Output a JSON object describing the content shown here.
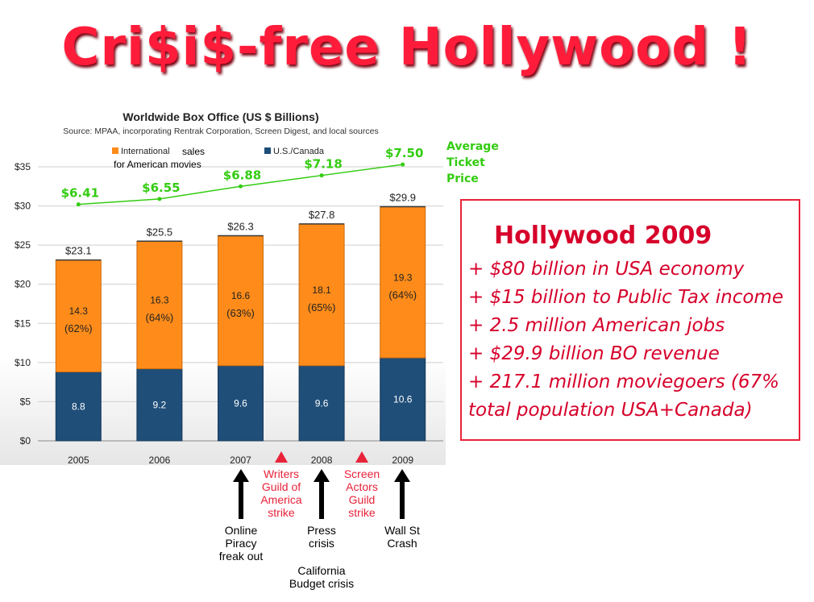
{
  "page_title": "Cri$i$-free Hollywood !",
  "chart_data": {
    "type": "bar",
    "stacked": true,
    "title": "Worldwide Box Office (US $ Billions)",
    "subtitle": "Source: MPAA, incorporating Rentrak Corporation, Screen Digest, and local sources",
    "categories": [
      "2005",
      "2006",
      "2007",
      "2008",
      "2009"
    ],
    "series": [
      {
        "name": "U.S./Canada",
        "color": "#1f4e79",
        "values": [
          8.8,
          9.2,
          9.6,
          9.6,
          10.6
        ]
      },
      {
        "name": "International sales for American movies",
        "color": "#ff8c1a",
        "values": [
          14.3,
          16.3,
          16.6,
          18.1,
          19.3
        ]
      }
    ],
    "international_pct": [
      "(62%)",
      "(64%)",
      "(63%)",
      "(65%)",
      "(64%)"
    ],
    "totals": [
      "$23.1",
      "$25.5",
      "$26.3",
      "$27.8",
      "$29.9"
    ],
    "y_ticks": [
      "$0",
      "$5",
      "$10",
      "$15",
      "$20",
      "$25",
      "$30",
      "$35"
    ],
    "ylim": [
      0,
      35
    ],
    "legend": [
      {
        "label": "International",
        "label_suffix": "sales",
        "label_line2": "for American movies",
        "color": "#ff8c1a"
      },
      {
        "label": "U.S./Canada",
        "color": "#1f4e79"
      }
    ],
    "ticket_price": {
      "label_lines": [
        "Average",
        "Ticket",
        "Price"
      ],
      "values": [
        6.41,
        6.55,
        6.88,
        7.18,
        7.5
      ],
      "labels": [
        "$6.41",
        "$6.55",
        "$6.88",
        "$7.18",
        "$7.50"
      ],
      "color": "#33cc11",
      "plotted_on_y": [
        30.2,
        30.9,
        32.5,
        33.9,
        35.3
      ]
    }
  },
  "events": [
    {
      "text": "Online\nPiracy\nfreak out",
      "color": "black",
      "arrow": "up"
    },
    {
      "text": "Writers\nGuild of\nAmerica\nstrike",
      "color": "red",
      "arrow": "up"
    },
    {
      "text": "Press\ncrisis",
      "color": "black",
      "arrow": "up"
    },
    {
      "text": "California\nBudget crisis",
      "color": "black",
      "arrow": "none"
    },
    {
      "text": "Screen\nActors\nGuild\nstrike",
      "color": "red",
      "arrow": "up"
    },
    {
      "text": "Wall St\nCrash",
      "color": "black",
      "arrow": "up"
    }
  ],
  "hollywood_box": {
    "title": "Hollywood 2009",
    "lines": [
      "+ $80 billion in USA economy",
      "+ $15 billion to Public Tax income",
      "+ 2.5 million American jobs",
      "+ $29.9 billion BO revenue",
      "+ 217.1 million moviegoers (67%",
      " total population USA+Canada)"
    ]
  }
}
